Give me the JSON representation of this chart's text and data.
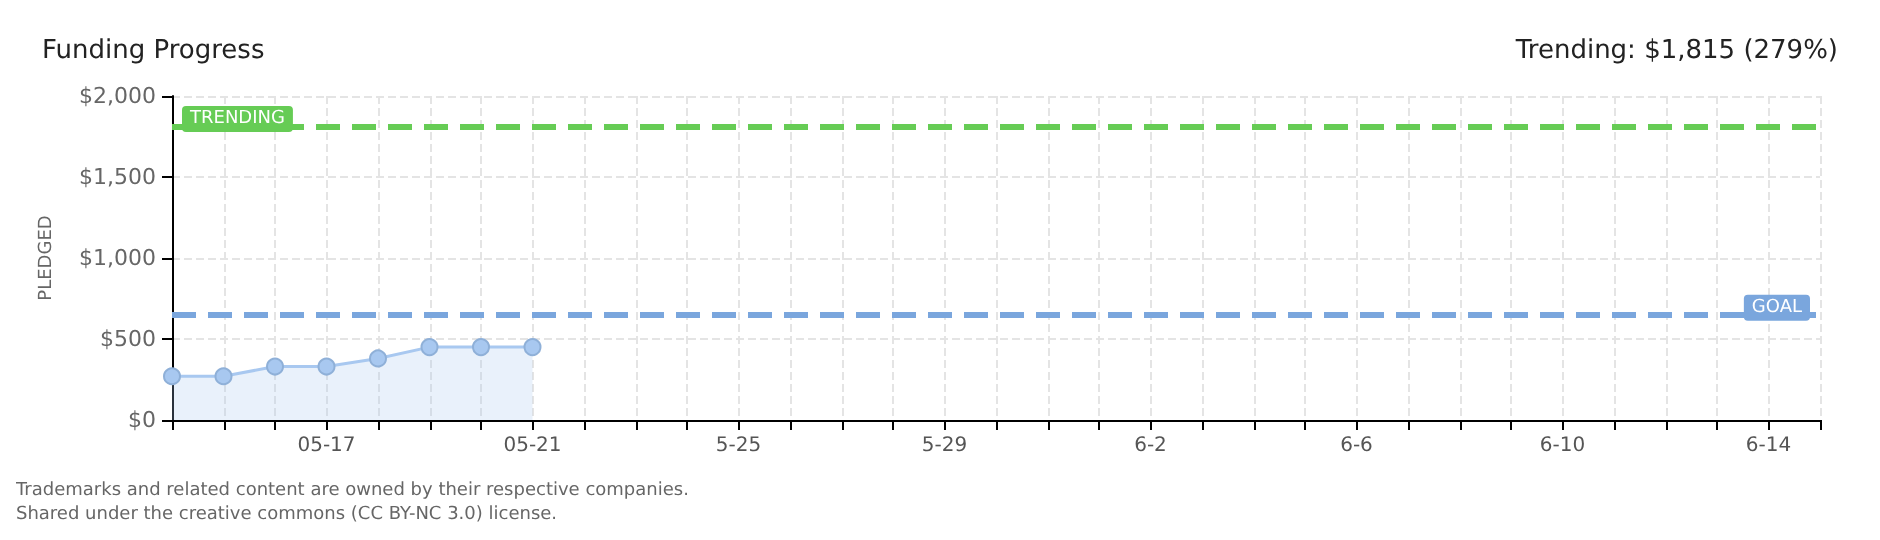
{
  "chart_data": {
    "type": "area",
    "title": "Funding Progress",
    "subtitle": "Trending: $1,815 (279%)",
    "ylabel": "PLEDGED",
    "categories": [
      null,
      null,
      null,
      "05-17",
      null,
      null,
      null,
      "05-21",
      null,
      null,
      null,
      "5-25",
      null,
      null,
      null,
      "5-29",
      null,
      null,
      null,
      "6-2",
      null,
      null,
      null,
      "6-6",
      null,
      null,
      null,
      "6-10",
      null,
      null,
      null,
      "6-14",
      null
    ],
    "series": [
      {
        "color": "#a8c8f0",
        "values": [
          270,
          270,
          330,
          330,
          380,
          450,
          450,
          450,
          null,
          null,
          null,
          null,
          null,
          null,
          null,
          null,
          null,
          null,
          null,
          null,
          null,
          null,
          null,
          null,
          null,
          null,
          null,
          null,
          null,
          null,
          null,
          null,
          null
        ]
      }
    ],
    "ylim": [
      0,
      2000
    ],
    "yticks": [
      {
        "value": 0,
        "label": "$0"
      },
      {
        "value": 500,
        "label": "$500"
      },
      {
        "value": 1000,
        "label": "$1,000"
      },
      {
        "value": 1500,
        "label": "$1,500"
      },
      {
        "value": 2000,
        "label": "$2,000"
      }
    ],
    "grid": true,
    "marker": "circle",
    "line_style": "solid",
    "ref_lines": [
      {
        "axis": "y",
        "value": 1815,
        "label": "TRENDING",
        "color": "#66cc55",
        "line_style": "dashed"
      },
      {
        "axis": "y",
        "value": 650,
        "label": "GOAL",
        "color": "#7aa6dd",
        "line_style": "dashed"
      }
    ],
    "annotations": [
      "Trademarks and related content are owned by their respective companies.",
      "Shared under the creative commons (CC BY-NC 3.0) license."
    ]
  }
}
